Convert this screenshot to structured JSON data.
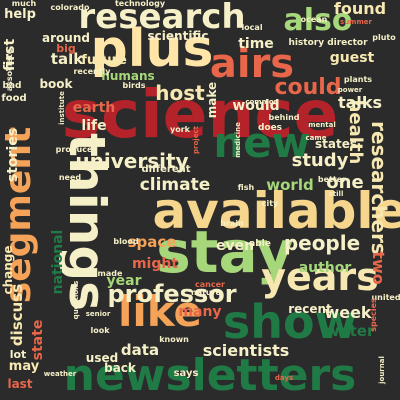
{
  "words": [
    {
      "text": "science",
      "color": "#b5232a"
    },
    {
      "text": "newsletters",
      "color": "#1f7a45"
    },
    {
      "text": "available",
      "color": "#f6d58c"
    },
    {
      "text": "stay",
      "color": "#a6d77a"
    },
    {
      "text": "show",
      "color": "#1f7a45"
    },
    {
      "text": "plus",
      "color": "#ffe6a8"
    },
    {
      "text": "airs",
      "color": "#e8664a"
    },
    {
      "text": "things",
      "color": "#f6f0c8"
    },
    {
      "text": "segment",
      "color": "#f6a35a"
    },
    {
      "text": "new",
      "color": "#1f7a45"
    },
    {
      "text": "research",
      "color": "#f6f0c8"
    },
    {
      "text": "also",
      "color": "#a6d77a"
    },
    {
      "text": "like",
      "color": "#f6a35a"
    },
    {
      "text": "years",
      "color": "#f6e8b0"
    },
    {
      "text": "professor",
      "color": "#f6f0c8"
    },
    {
      "text": "university",
      "color": "#f6f0c8"
    },
    {
      "text": "people",
      "color": "#f6f0c8"
    },
    {
      "text": "researchers",
      "color": "#f6e8b0"
    },
    {
      "text": "climate",
      "color": "#f6f0c8"
    },
    {
      "text": "could",
      "color": "#e8664a"
    },
    {
      "text": "host",
      "color": "#f6e8b0"
    },
    {
      "text": "study",
      "color": "#f6f0c8"
    },
    {
      "text": "health",
      "color": "#f6e8b0"
    },
    {
      "text": "one",
      "color": "#f6f0c8"
    },
    {
      "text": "found",
      "color": "#f6e8b0"
    },
    {
      "text": "guest",
      "color": "#f6e8b0"
    },
    {
      "text": "talks",
      "color": "#f6f0c8"
    },
    {
      "text": "week",
      "color": "#f6f0c8"
    },
    {
      "text": "scientists",
      "color": "#f6f0c8"
    },
    {
      "text": "author",
      "color": "#a6d77a"
    },
    {
      "text": "two",
      "color": "#e8664a"
    },
    {
      "text": "might",
      "color": "#e8664a"
    },
    {
      "text": "even",
      "color": "#f6f0c8"
    },
    {
      "text": "world",
      "color": "#a6d77a"
    },
    {
      "text": "year",
      "color": "#a6d77a"
    },
    {
      "text": "space",
      "color": "#f6a35a"
    },
    {
      "text": "many",
      "color": "#e8664a"
    },
    {
      "text": "data",
      "color": "#f6f0c8"
    },
    {
      "text": "water",
      "color": "#1f7a45"
    },
    {
      "text": "discuss",
      "color": "#f6e8b0"
    },
    {
      "text": "state",
      "color": "#e8664a"
    },
    {
      "text": "national",
      "color": "#1f7a45"
    },
    {
      "text": "talk",
      "color": "#f6f0c8"
    },
    {
      "text": "earth",
      "color": "#e8664a"
    },
    {
      "text": "first",
      "color": "#f6f0c8"
    },
    {
      "text": "stories",
      "color": "#f6f0c8"
    },
    {
      "text": "life",
      "color": "#f6f0c8"
    },
    {
      "text": "make",
      "color": "#f6f0c8"
    },
    {
      "text": "would",
      "color": "#f6f0c8"
    },
    {
      "text": "time",
      "color": "#f6f0c8"
    },
    {
      "text": "help",
      "color": "#f6f0c8"
    },
    {
      "text": "around",
      "color": "#f6f0c8"
    },
    {
      "text": "scientific",
      "color": "#f6f0c8"
    },
    {
      "text": "future",
      "color": "#f6e8b0"
    },
    {
      "text": "book",
      "color": "#f6f0c8"
    },
    {
      "text": "humans",
      "color": "#a6d77a"
    },
    {
      "text": "states",
      "color": "#f6f0c8"
    },
    {
      "text": "recent",
      "color": "#f6f0c8"
    },
    {
      "text": "used",
      "color": "#f6f0c8"
    },
    {
      "text": "may",
      "color": "#f6e8b0"
    },
    {
      "text": "last",
      "color": "#e8664a"
    },
    {
      "text": "back",
      "color": "#f6f0c8"
    },
    {
      "text": "change",
      "color": "#f6e8b0"
    },
    {
      "text": "history director",
      "color": "#f6f0c8"
    },
    {
      "text": "different",
      "color": "#f6f0c8"
    },
    {
      "text": "says",
      "color": "#f6f0c8"
    },
    {
      "text": "lot",
      "color": "#f6f0c8"
    },
    {
      "text": "big",
      "color": "#e8664a"
    },
    {
      "text": "food",
      "color": "#f6f0c8"
    },
    {
      "text": "bad",
      "color": "#f6f0c8"
    },
    {
      "text": "colorado",
      "color": "#f6f0c8"
    },
    {
      "text": "technology",
      "color": "#f6f0c8"
    },
    {
      "text": "ocean",
      "color": "#f6f0c8"
    },
    {
      "text": "summer",
      "color": "#e8664a"
    },
    {
      "text": "pluto",
      "color": "#f6f0c8"
    },
    {
      "text": "birds",
      "color": "#f6f0c8"
    },
    {
      "text": "york",
      "color": "#f6f0c8"
    },
    {
      "text": "project",
      "color": "#e8664a"
    },
    {
      "text": "medicine",
      "color": "#f6f0c8"
    },
    {
      "text": "behind",
      "color": "#f6f0c8"
    },
    {
      "text": "does",
      "color": "#f6f0c8"
    },
    {
      "text": "better",
      "color": "#f6f0c8"
    },
    {
      "text": "fish",
      "color": "#f6f0c8"
    },
    {
      "text": "known",
      "color": "#f6f0c8"
    },
    {
      "text": "united",
      "color": "#f6f0c8"
    },
    {
      "text": "species",
      "color": "#e8664a"
    },
    {
      "text": "cancer",
      "color": "#e8664a"
    },
    {
      "text": "blood",
      "color": "#f6f0c8"
    },
    {
      "text": "producer",
      "color": "#f6f0c8"
    },
    {
      "text": "institute",
      "color": "#f6f0c8"
    },
    {
      "text": "questions",
      "color": "#f6f0c8"
    },
    {
      "text": "senior",
      "color": "#f6f0c8"
    },
    {
      "text": "weather",
      "color": "#f6f0c8"
    },
    {
      "text": "made",
      "color": "#f6f0c8"
    },
    {
      "text": "look",
      "color": "#f6f0c8"
    },
    {
      "text": "mental",
      "color": "#f6f0c8"
    },
    {
      "text": "came",
      "color": "#f6f0c8"
    },
    {
      "text": "plants",
      "color": "#f6f0c8"
    },
    {
      "text": "power",
      "color": "#f6f0c8"
    },
    {
      "text": "recently",
      "color": "#f6f0c8"
    },
    {
      "text": "associate",
      "color": "#f6f0c8"
    },
    {
      "text": "city",
      "color": "#f6f0c8"
    },
    {
      "text": "brain",
      "color": "#f6f0c8"
    },
    {
      "text": "able",
      "color": "#f6f0c8"
    },
    {
      "text": "nature",
      "color": "#f6f0c8"
    },
    {
      "text": "need",
      "color": "#f6f0c8"
    },
    {
      "text": "still",
      "color": "#f6f0c8"
    },
    {
      "text": "common",
      "color": "#f6f0c8"
    },
    {
      "text": "journal",
      "color": "#f6f0c8"
    },
    {
      "text": "days",
      "color": "#e8664a"
    },
    {
      "text": "much",
      "color": "#f6f0c8"
    },
    {
      "text": "local",
      "color": "#f6f0c8"
    }
  ]
}
